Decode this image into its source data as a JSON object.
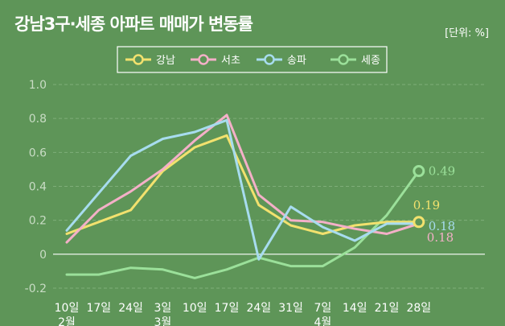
{
  "header": {
    "title": "강남3구·세종 아파트 매매가 변동률",
    "unit": "[단위: %]"
  },
  "chart_data": {
    "type": "line",
    "title": "강남3구·세종 아파트 매매가 변동률",
    "unit_label": "[단위: %]",
    "x": [
      "10일",
      "17일",
      "24일",
      "3일",
      "10일",
      "17일",
      "24일",
      "31일",
      "7일",
      "14일",
      "21일",
      "28일"
    ],
    "x_sublabels": [
      "2월",
      "",
      "",
      "3월",
      "",
      "",
      "",
      "",
      "4월",
      "",
      "",
      ""
    ],
    "ylim": [
      -0.2,
      1.0
    ],
    "yticks": [
      1.0,
      0.8,
      0.6,
      0.4,
      0.2,
      0,
      -0.2
    ],
    "ytick_labels": [
      "1.0",
      "0.8",
      "0.6",
      "0.4",
      "0.2",
      "0",
      "-0.2"
    ],
    "grid": true,
    "legend_position": "top",
    "series": [
      {
        "name": "강남",
        "color": "#f2e16e",
        "values": [
          0.12,
          0.19,
          0.26,
          0.49,
          0.63,
          0.7,
          0.29,
          0.17,
          0.12,
          0.17,
          0.19,
          0.19
        ],
        "end_label": "0.19"
      },
      {
        "name": "서초",
        "color": "#f4b0c8",
        "values": [
          0.07,
          0.26,
          0.37,
          0.5,
          0.67,
          0.82,
          0.35,
          0.2,
          0.19,
          0.15,
          0.12,
          0.18
        ],
        "end_label": "0.18"
      },
      {
        "name": "송파",
        "color": "#a7dcef",
        "values": [
          0.14,
          0.36,
          0.58,
          0.68,
          0.72,
          0.79,
          -0.03,
          0.28,
          0.16,
          0.08,
          0.18,
          0.18
        ],
        "end_label": "0.18"
      },
      {
        "name": "세종",
        "color": "#9be09a",
        "values": [
          -0.12,
          -0.12,
          -0.08,
          -0.09,
          -0.14,
          -0.09,
          -0.02,
          -0.07,
          -0.07,
          0.04,
          0.23,
          0.49
        ],
        "end_label": "0.49"
      }
    ]
  }
}
